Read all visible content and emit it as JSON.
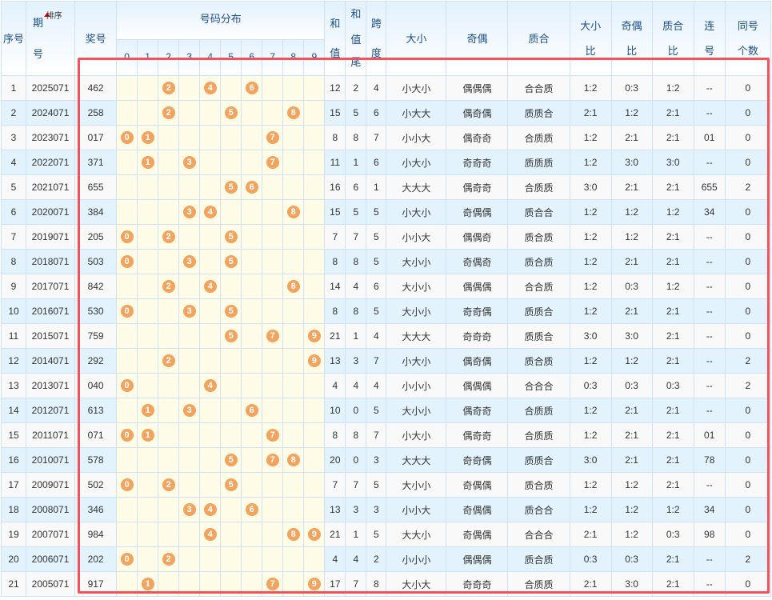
{
  "headers": {
    "seq": "序号",
    "issue_a": "期",
    "issue_b": "号",
    "sort": "排序",
    "number": "奖号",
    "distribution": "号码分布",
    "digits": [
      "0",
      "1",
      "2",
      "3",
      "4",
      "5",
      "6",
      "7",
      "8",
      "9"
    ],
    "sum_a": "和",
    "sum_b": "值",
    "tail_a": "和",
    "tail_b": "值",
    "tail_c": "尾",
    "span_a": "跨",
    "span_b": "度",
    "size": "大小",
    "parity": "奇偶",
    "prime": "质合",
    "size_ratio_a": "大小",
    "size_ratio_b": "比",
    "parity_ratio_a": "奇偶",
    "parity_ratio_b": "比",
    "prime_ratio_a": "质合",
    "prime_ratio_b": "比",
    "consec_a": "连",
    "consec_b": "号",
    "same_a": "同号",
    "same_b": "个数"
  },
  "colors": {
    "ball": "#f2a35e",
    "highlight": "#f4525a",
    "header_text": "#1d4f8c",
    "even_row": "#e3f3fd",
    "digit_cell": "#fefbe6"
  },
  "rows": [
    [
      "1",
      "2025071",
      "462",
      "12",
      "2",
      "4",
      "小大小",
      "偶偶偶",
      "合合质",
      "1:2",
      "0:3",
      "1:2",
      "--",
      "0"
    ],
    [
      "2",
      "2024071",
      "258",
      "15",
      "5",
      "6",
      "小大大",
      "偶奇偶",
      "质质合",
      "2:1",
      "1:2",
      "2:1",
      "--",
      "0"
    ],
    [
      "3",
      "2023071",
      "017",
      "8",
      "8",
      "7",
      "小小大",
      "偶奇奇",
      "合质质",
      "1:2",
      "2:1",
      "2:1",
      "01",
      "0"
    ],
    [
      "4",
      "2022071",
      "371",
      "11",
      "1",
      "6",
      "小大小",
      "奇奇奇",
      "质质质",
      "1:2",
      "3:0",
      "3:0",
      "--",
      "0"
    ],
    [
      "5",
      "2021071",
      "655",
      "16",
      "6",
      "1",
      "大大大",
      "偶奇奇",
      "合质质",
      "3:0",
      "2:1",
      "2:1",
      "655",
      "2"
    ],
    [
      "6",
      "2020071",
      "384",
      "15",
      "5",
      "5",
      "小大小",
      "奇偶偶",
      "质合合",
      "1:2",
      "1:2",
      "1:2",
      "34",
      "0"
    ],
    [
      "7",
      "2019071",
      "205",
      "7",
      "7",
      "5",
      "小小大",
      "偶偶奇",
      "质合质",
      "1:2",
      "1:2",
      "2:1",
      "--",
      "0"
    ],
    [
      "8",
      "2018071",
      "503",
      "8",
      "8",
      "5",
      "大小小",
      "奇偶奇",
      "质合质",
      "1:2",
      "2:1",
      "2:1",
      "--",
      "0"
    ],
    [
      "9",
      "2017071",
      "842",
      "14",
      "4",
      "6",
      "大小小",
      "偶偶偶",
      "合合质",
      "1:2",
      "0:3",
      "1:2",
      "--",
      "0"
    ],
    [
      "10",
      "2016071",
      "530",
      "8",
      "8",
      "5",
      "大小小",
      "奇奇偶",
      "质质合",
      "1:2",
      "2:1",
      "2:1",
      "--",
      "0"
    ],
    [
      "11",
      "2015071",
      "759",
      "21",
      "1",
      "4",
      "大大大",
      "奇奇奇",
      "质质合",
      "3:0",
      "3:0",
      "2:1",
      "--",
      "0"
    ],
    [
      "12",
      "2014071",
      "292",
      "13",
      "3",
      "7",
      "小大小",
      "偶奇偶",
      "质合质",
      "1:2",
      "1:2",
      "2:1",
      "--",
      "2"
    ],
    [
      "13",
      "2013071",
      "040",
      "4",
      "4",
      "4",
      "小小小",
      "偶偶偶",
      "合合合",
      "0:3",
      "0:3",
      "0:3",
      "--",
      "2"
    ],
    [
      "14",
      "2012071",
      "613",
      "10",
      "0",
      "5",
      "大小小",
      "偶奇奇",
      "合质质",
      "1:2",
      "2:1",
      "2:1",
      "--",
      "0"
    ],
    [
      "15",
      "2011071",
      "071",
      "8",
      "8",
      "7",
      "小大小",
      "偶奇奇",
      "合质质",
      "1:2",
      "2:1",
      "2:1",
      "01",
      "0"
    ],
    [
      "16",
      "2010071",
      "578",
      "20",
      "0",
      "3",
      "大大大",
      "奇奇偶",
      "质质合",
      "3:0",
      "2:1",
      "2:1",
      "78",
      "0"
    ],
    [
      "17",
      "2009071",
      "502",
      "7",
      "7",
      "5",
      "大小小",
      "奇偶偶",
      "质合质",
      "1:2",
      "1:2",
      "2:1",
      "--",
      "0"
    ],
    [
      "18",
      "2008071",
      "346",
      "13",
      "3",
      "3",
      "小小大",
      "奇偶偶",
      "质合合",
      "1:2",
      "1:2",
      "1:2",
      "34",
      "0"
    ],
    [
      "19",
      "2007071",
      "984",
      "21",
      "1",
      "5",
      "大大小",
      "奇偶偶",
      "合合合",
      "2:1",
      "1:2",
      "0:3",
      "98",
      "0"
    ],
    [
      "20",
      "2006071",
      "202",
      "4",
      "4",
      "2",
      "小小小",
      "偶偶偶",
      "质合质",
      "0:3",
      "0:3",
      "2:1",
      "--",
      "2"
    ],
    [
      "21",
      "2005071",
      "917",
      "17",
      "7",
      "8",
      "大小大",
      "奇奇奇",
      "合质质",
      "2:1",
      "3:0",
      "2:1",
      "--",
      "0"
    ]
  ]
}
